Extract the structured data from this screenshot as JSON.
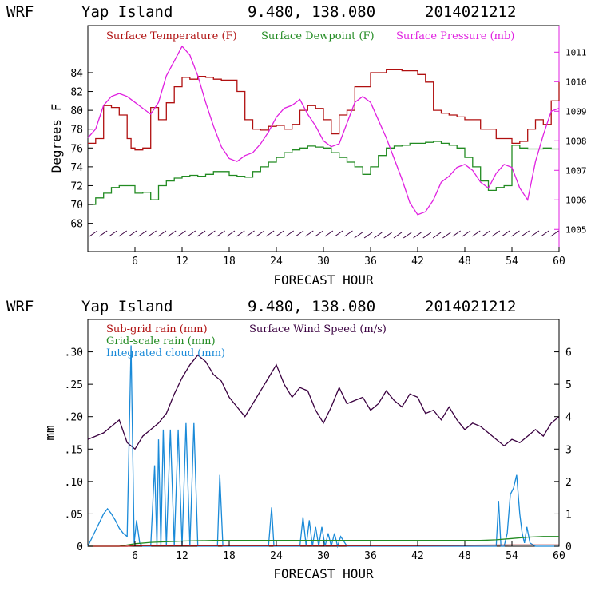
{
  "colors": {
    "temp": "#b01010",
    "dewpoint": "#228b22",
    "pressure": "#e020e0",
    "wind": "#3a0040",
    "subgrid": "#b01010",
    "gridscale": "#228b22",
    "cloud": "#1a8ad8"
  },
  "chart_data": [
    {
      "type": "line",
      "header": {
        "model": "WRF",
        "location": "Yap Island",
        "coords": "9.480, 138.080",
        "run": "2014021212"
      },
      "xlabel": "FORECAST HOUR",
      "ylabel": "Degrees F",
      "xlim": [
        0,
        60
      ],
      "ylim": [
        65,
        89
      ],
      "y2lim": [
        1004.25,
        1011.9
      ],
      "x_ticks": [
        "6",
        "12",
        "18",
        "24",
        "30",
        "36",
        "42",
        "48",
        "54",
        "60"
      ],
      "y_ticks": [
        "68",
        "70",
        "72",
        "74",
        "76",
        "78",
        "80",
        "82",
        "84"
      ],
      "y2_ticks": [
        "1005",
        "1006",
        "1007",
        "1008",
        "1009",
        "1010",
        "1011"
      ],
      "legend": [
        "Surface Temperature (F)",
        "Surface Dewpoint (F)",
        "Surface Pressure (mb)"
      ],
      "series": [
        {
          "name": "Surface Temperature (F)",
          "x": [
            0,
            1,
            2,
            3,
            4,
            5,
            5.5,
            6,
            6.5,
            7,
            7.5,
            8,
            9,
            10,
            11,
            12,
            13,
            14,
            15,
            16,
            17,
            18,
            19,
            20,
            21,
            22,
            23,
            24,
            25,
            26,
            27,
            28,
            29,
            30,
            31,
            32,
            33,
            34,
            36,
            38,
            40,
            42,
            43,
            44,
            45,
            46,
            47,
            48,
            50,
            52,
            53,
            54,
            55,
            56,
            57,
            58,
            59,
            60
          ],
          "y": [
            76.5,
            77,
            80.5,
            80.3,
            79.5,
            77,
            76,
            75.8,
            75.8,
            76,
            76,
            80.3,
            79,
            80.8,
            82.5,
            83.5,
            83.3,
            83.6,
            83.5,
            83.3,
            83.2,
            83.2,
            82,
            79,
            78,
            77.9,
            78.3,
            78.4,
            78,
            78.5,
            80,
            80.5,
            80.2,
            79,
            77.5,
            79.5,
            80,
            82.5,
            84,
            84.3,
            84.2,
            83.8,
            83,
            80,
            79.7,
            79.5,
            79.3,
            79,
            78,
            77,
            77,
            76.5,
            76.7,
            78,
            79,
            78.5,
            81,
            83
          ]
        },
        {
          "name": "Surface Dewpoint (F)",
          "x": [
            0,
            1,
            2,
            3,
            4,
            5,
            6,
            7,
            8,
            9,
            10,
            11,
            12,
            13,
            14,
            15,
            16,
            17,
            18,
            19,
            20,
            21,
            22,
            23,
            24,
            25,
            26,
            27,
            28,
            29,
            30,
            31,
            32,
            33,
            34,
            35,
            36,
            37,
            38,
            39,
            40,
            41,
            42,
            43,
            44,
            45,
            46,
            47,
            48,
            49,
            50,
            51,
            52,
            53,
            54,
            55,
            56,
            57,
            58,
            59,
            60
          ],
          "y": [
            70,
            70.7,
            71.2,
            71.8,
            72,
            72,
            71.2,
            71.3,
            70.5,
            72,
            72.5,
            72.8,
            73,
            73.1,
            73,
            73.2,
            73.5,
            73.5,
            73.1,
            73,
            72.9,
            73.5,
            74,
            74.5,
            75,
            75.5,
            75.8,
            76,
            76.2,
            76.1,
            76,
            75.5,
            75,
            74.5,
            74,
            73.2,
            74,
            75.2,
            76,
            76.2,
            76.3,
            76.5,
            76.5,
            76.6,
            76.7,
            76.5,
            76.3,
            76,
            75,
            74,
            72.5,
            71.5,
            71.8,
            72,
            76.3,
            76,
            75.9,
            75.9,
            76,
            75.9,
            75.9
          ]
        },
        {
          "name": "Surface Pressure (mb)",
          "x": [
            0,
            1,
            2,
            3,
            4,
            5,
            6,
            7,
            8,
            9,
            10,
            11,
            12,
            13,
            14,
            15,
            16,
            17,
            18,
            19,
            20,
            21,
            22,
            23,
            24,
            25,
            26,
            27,
            28,
            29,
            30,
            31,
            32,
            33,
            34,
            35,
            36,
            37,
            38,
            39,
            40,
            41,
            42,
            43,
            44,
            45,
            46,
            47,
            48,
            49,
            50,
            51,
            52,
            53,
            54,
            55,
            56,
            57,
            58,
            59,
            60
          ],
          "y": [
            1008.1,
            1008.4,
            1009.2,
            1009.5,
            1009.6,
            1009.5,
            1009.3,
            1009.1,
            1008.9,
            1009.3,
            1010.2,
            1010.7,
            1011.2,
            1010.9,
            1010.2,
            1009.3,
            1008.5,
            1007.8,
            1007.4,
            1007.3,
            1007.5,
            1007.6,
            1007.9,
            1008.3,
            1008.8,
            1009.1,
            1009.2,
            1009.4,
            1008.9,
            1008.5,
            1008.0,
            1007.8,
            1007.9,
            1008.6,
            1009.3,
            1009.5,
            1009.3,
            1008.7,
            1008.1,
            1007.4,
            1006.7,
            1005.9,
            1005.5,
            1005.6,
            1006.0,
            1006.6,
            1006.8,
            1007.1,
            1007.2,
            1007.0,
            1006.6,
            1006.4,
            1006.9,
            1007.2,
            1007.1,
            1006.4,
            1006.0,
            1007.3,
            1008.2,
            1009.0,
            1009.1
          ]
        }
      ]
    },
    {
      "type": "line",
      "header": {
        "model": "WRF",
        "location": "Yap Island",
        "coords": "9.480, 138.080",
        "run": "2014021212"
      },
      "xlabel": "FORECAST HOUR",
      "ylabel": "mm",
      "xlim": [
        0,
        60
      ],
      "ylim": [
        0,
        0.35
      ],
      "y2lim": [
        0,
        7
      ],
      "x_ticks": [
        "6",
        "12",
        "18",
        "24",
        "30",
        "36",
        "42",
        "48",
        "54",
        "60"
      ],
      "y_ticks": [
        "0",
        ".05",
        ".10",
        ".15",
        ".20",
        ".25",
        ".30"
      ],
      "y2_ticks": [
        "0",
        "1",
        "2",
        "3",
        "4",
        "5",
        "6"
      ],
      "legend": [
        "Sub-grid rain (mm)",
        "Grid-scale rain (mm)",
        "Integrated cloud (mm)",
        "Surface Wind Speed (m/s)"
      ],
      "series": [
        {
          "name": "Surface Wind Speed (m/s)",
          "axis": "right",
          "x": [
            0,
            1,
            2,
            3,
            4,
            5,
            6,
            7,
            8,
            9,
            10,
            11,
            12,
            13,
            14,
            15,
            16,
            17,
            18,
            19,
            20,
            21,
            22,
            23,
            24,
            25,
            26,
            27,
            28,
            29,
            30,
            31,
            32,
            33,
            34,
            35,
            36,
            37,
            38,
            39,
            40,
            41,
            42,
            43,
            44,
            45,
            46,
            47,
            48,
            49,
            50,
            51,
            52,
            53,
            54,
            55,
            56,
            57,
            58,
            59,
            60
          ],
          "y": [
            3.3,
            3.4,
            3.5,
            3.7,
            3.9,
            3.2,
            3.0,
            3.4,
            3.6,
            3.8,
            4.1,
            4.7,
            5.2,
            5.6,
            5.9,
            5.7,
            5.3,
            5.1,
            4.6,
            4.3,
            4.0,
            4.4,
            4.8,
            5.2,
            5.6,
            5.0,
            4.6,
            4.9,
            4.8,
            4.2,
            3.8,
            4.3,
            4.9,
            4.4,
            4.5,
            4.6,
            4.2,
            4.4,
            4.8,
            4.5,
            4.3,
            4.7,
            4.6,
            4.1,
            4.2,
            3.9,
            4.3,
            3.9,
            3.6,
            3.8,
            3.7,
            3.5,
            3.3,
            3.1,
            3.3,
            3.2,
            3.4,
            3.6,
            3.4,
            3.8,
            4.0
          ]
        },
        {
          "name": "Integrated cloud (mm)",
          "axis": "left",
          "x": [
            0,
            2,
            2.5,
            3,
            3.5,
            4,
            4.5,
            5,
            5.5,
            5.9,
            6.2,
            6.6,
            7,
            8,
            8.5,
            8.8,
            9,
            9.3,
            9.6,
            10,
            10.5,
            11,
            11.5,
            12,
            12.5,
            13,
            13.5,
            14,
            15,
            16,
            16.5,
            16.8,
            17.2,
            18,
            23,
            23.4,
            23.7,
            24,
            26,
            27,
            27.4,
            27.8,
            28.2,
            28.6,
            29,
            29.4,
            29.8,
            30.2,
            30.6,
            31,
            31.4,
            31.8,
            32.2,
            33,
            52,
            52.3,
            52.6,
            53,
            53.4,
            53.8,
            54.2,
            54.6,
            55,
            55.3,
            55.6,
            55.9,
            56.3,
            57,
            58,
            59,
            60
          ],
          "y": [
            0,
            0.05,
            0.058,
            0.05,
            0.04,
            0.028,
            0.02,
            0.015,
            0.31,
            0.005,
            0.04,
            0.005,
            0,
            0,
            0.125,
            0,
            0.165,
            0,
            0.18,
            0,
            0.18,
            0,
            0.18,
            0,
            0.19,
            0,
            0.19,
            0,
            0,
            0,
            0,
            0.11,
            0,
            0,
            0,
            0.06,
            0,
            0,
            0,
            0,
            0.045,
            0,
            0.04,
            0,
            0.03,
            0,
            0.03,
            0,
            0.02,
            0,
            0.02,
            0,
            0.015,
            0,
            0,
            0.07,
            0,
            0,
            0.02,
            0.08,
            0.09,
            0.11,
            0.05,
            0.02,
            0.005,
            0.03,
            0.005,
            0,
            0,
            0,
            0
          ]
        },
        {
          "name": "Grid-scale rain (mm)",
          "axis": "left",
          "x": [
            0,
            4,
            5,
            6,
            8,
            12,
            16,
            20,
            30,
            40,
            50,
            52,
            54,
            56,
            58,
            60
          ],
          "y": [
            0,
            0,
            0.002,
            0.004,
            0.006,
            0.008,
            0.009,
            0.009,
            0.009,
            0.009,
            0.009,
            0.01,
            0.012,
            0.014,
            0.015,
            0.015
          ]
        },
        {
          "name": "Sub-grid rain (mm)",
          "axis": "left",
          "x": [
            0,
            5,
            6,
            16,
            20,
            40,
            54,
            56,
            58,
            60
          ],
          "y": [
            0,
            0,
            0.001,
            0.001,
            0.001,
            0.001,
            0.002,
            0.002,
            0.002,
            0.002
          ]
        }
      ]
    }
  ]
}
